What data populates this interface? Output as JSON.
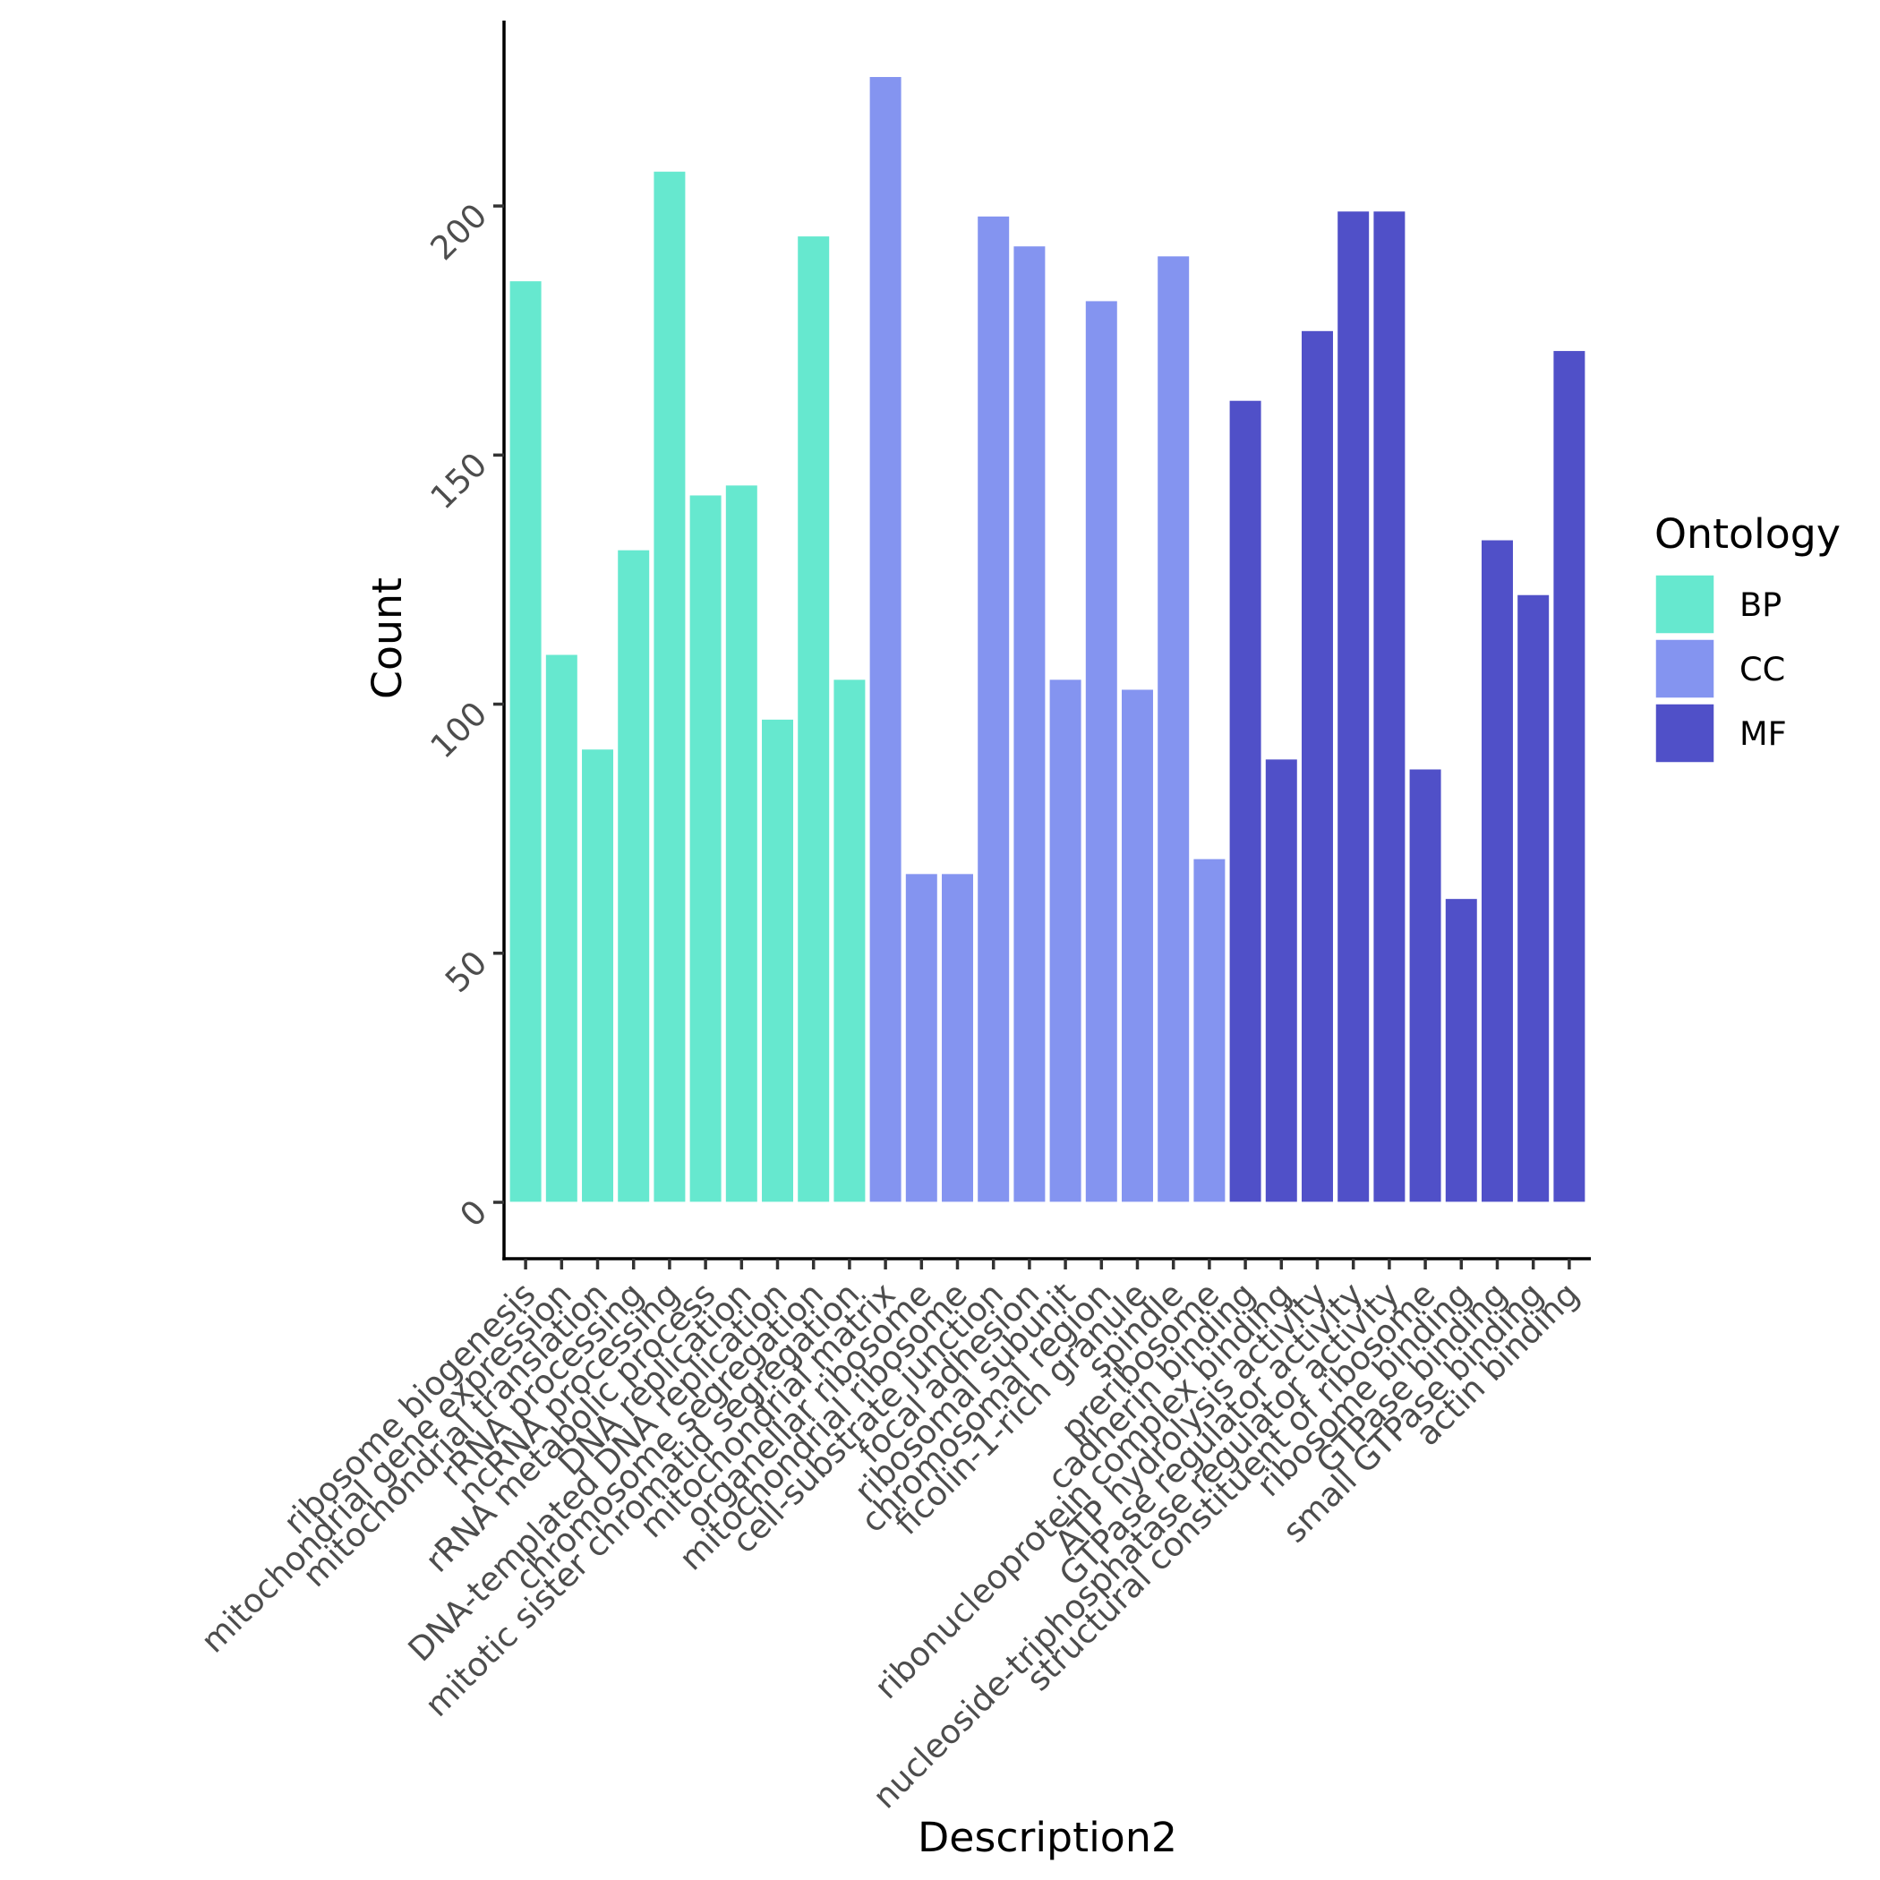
{
  "chart_data": {
    "type": "bar",
    "title": "",
    "xlabel": "Description2",
    "ylabel": "Count",
    "ylim": [
      0,
      230
    ],
    "yticks": [
      0,
      50,
      100,
      150,
      200
    ],
    "grid": false,
    "legend": {
      "title": "Ontology",
      "placement": "right",
      "entries": [
        {
          "name": "BP",
          "color": "#66E8CF"
        },
        {
          "name": "CC",
          "color": "#8494F0"
        },
        {
          "name": "MF",
          "color": "#5050C8"
        }
      ]
    },
    "categories": [
      "ribosome biogenesis",
      "mitochondrial gene expression",
      "mitochondrial translation",
      "rRNA processing",
      "ncRNA processing",
      "rRNA metabolic process",
      "DNA replication",
      "DNA-templated DNA replication",
      "chromosome segregation",
      "mitotic sister chromatid segregation",
      "mitochondrial matrix",
      "organellar ribosome",
      "mitochondrial ribosome",
      "cell-substrate junction",
      "focal adhesion",
      "ribosomal subunit",
      "chromosomal region",
      "ficolin-1-rich granule",
      "spindle",
      "preribosome",
      "cadherin binding",
      "ribonucleoprotein complex binding",
      "ATP hydrolysis activity",
      "GTPase regulator activity",
      "nucleoside-triphosphatase regulator activity",
      "structural constituent of ribosome",
      "ribosome binding",
      "GTPase binding",
      "small GTPase binding",
      "actin binding"
    ],
    "groups": [
      "BP",
      "BP",
      "BP",
      "BP",
      "BP",
      "BP",
      "BP",
      "BP",
      "BP",
      "BP",
      "CC",
      "CC",
      "CC",
      "CC",
      "CC",
      "CC",
      "CC",
      "CC",
      "CC",
      "CC",
      "MF",
      "MF",
      "MF",
      "MF",
      "MF",
      "MF",
      "MF",
      "MF",
      "MF",
      "MF"
    ],
    "values": [
      185,
      110,
      91,
      131,
      207,
      142,
      144,
      97,
      194,
      105,
      226,
      66,
      66,
      198,
      192,
      105,
      181,
      103,
      190,
      69,
      161,
      89,
      175,
      199,
      199,
      87,
      61,
      133,
      122,
      171
    ]
  }
}
